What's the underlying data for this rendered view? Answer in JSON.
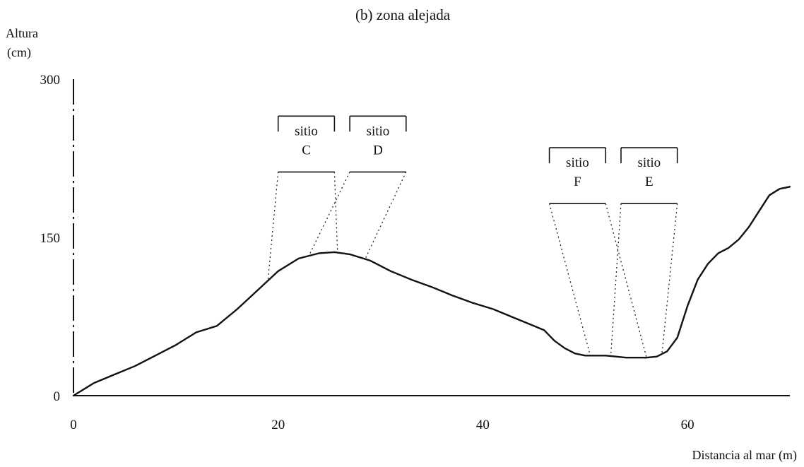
{
  "chart_data": {
    "type": "line",
    "title": "(b) zona alejada",
    "xlabel": "Distancia al mar (m)",
    "ylabel": "Altura (cm)",
    "ylabel_lines": [
      "Altura",
      "(cm)"
    ],
    "xlim": [
      0,
      70
    ],
    "ylim": [
      0,
      300
    ],
    "x_ticks": [
      0,
      20,
      40,
      60
    ],
    "y_ticks": [
      0,
      150,
      300
    ],
    "grid": false,
    "legend": "none",
    "series": [
      {
        "x": [
          0,
          2,
          4,
          6,
          8,
          10,
          12,
          14,
          16,
          18,
          20,
          22,
          24,
          25.5,
          27,
          29,
          31,
          33,
          35,
          37,
          39,
          41,
          43,
          45,
          46,
          47,
          48,
          49,
          50,
          51,
          52,
          53,
          54,
          55,
          56,
          57,
          58,
          59,
          60,
          61,
          62,
          63,
          64,
          65,
          66,
          67,
          68,
          69,
          70
        ],
        "y": [
          0,
          12,
          20,
          28,
          38,
          48,
          60,
          66,
          82,
          100,
          118,
          130,
          135,
          136,
          134,
          128,
          118,
          110,
          103,
          95,
          88,
          82,
          74,
          66,
          62,
          52,
          45,
          40,
          38,
          38,
          38,
          37,
          36,
          36,
          36,
          37,
          42,
          55,
          85,
          110,
          125,
          135,
          140,
          148,
          160,
          175,
          190,
          196,
          198
        ]
      }
    ],
    "annotations": [
      {
        "id": "c",
        "line1": "sitio",
        "line2": "C",
        "box_x": [
          20,
          25.5
        ],
        "box_y": [
          265,
          212
        ],
        "ground_x": [
          19,
          25.8
        ]
      },
      {
        "id": "d",
        "line1": "sitio",
        "line2": "D",
        "box_x": [
          27,
          32.5
        ],
        "box_y": [
          265,
          212
        ],
        "ground_x": [
          23,
          28.5
        ]
      },
      {
        "id": "f",
        "line1": "sitio",
        "line2": "F",
        "box_x": [
          46.5,
          52
        ],
        "box_y": [
          235,
          182
        ],
        "ground_x": [
          50.5,
          56
        ]
      },
      {
        "id": "e",
        "line1": "sitio",
        "line2": "E",
        "box_x": [
          53.5,
          59
        ],
        "box_y": [
          235,
          182
        ],
        "ground_x": [
          52.5,
          57.5
        ]
      }
    ]
  }
}
